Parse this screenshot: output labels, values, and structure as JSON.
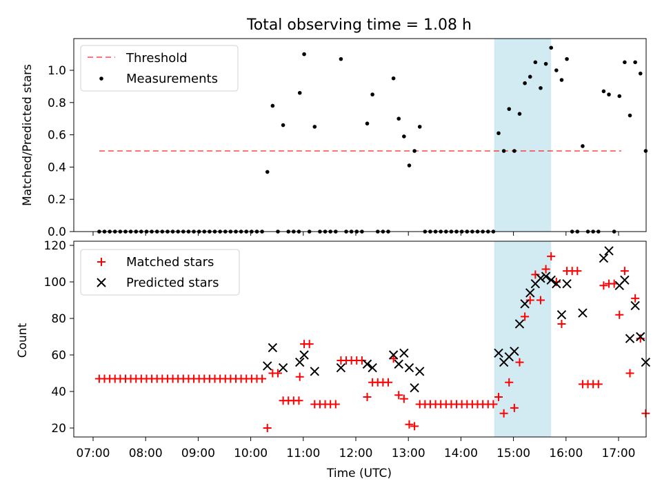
{
  "chart_data": [
    {
      "type": "scatter",
      "title": "Total observing time = 1.08 h",
      "ylabel": "Matched/Predicted stars",
      "xlabel": "",
      "ylim": [
        0,
        1.2
      ],
      "yticks": [
        "0.0",
        "0.2",
        "0.4",
        "0.6",
        "0.8",
        "1.0"
      ],
      "legend_position": "top-left",
      "highlight_span": {
        "x0": "14:38",
        "x1": "15:43",
        "color": "#add8e6"
      },
      "threshold": {
        "name": "Threshold",
        "value": 0.5,
        "x0": "07:07",
        "x1": "17:03",
        "color": "#ff0000"
      },
      "series": [
        {
          "name": "Measurements",
          "color": "#000000",
          "marker": "dot",
          "points": [
            [
              "07:07",
              0
            ],
            [
              "07:13",
              0
            ],
            [
              "07:19",
              0
            ],
            [
              "07:25",
              0
            ],
            [
              "07:31",
              0
            ],
            [
              "07:37",
              0
            ],
            [
              "07:43",
              0
            ],
            [
              "07:49",
              0
            ],
            [
              "07:55",
              0
            ],
            [
              "08:01",
              0
            ],
            [
              "08:07",
              0
            ],
            [
              "08:13",
              0
            ],
            [
              "08:19",
              0
            ],
            [
              "08:25",
              0
            ],
            [
              "08:31",
              0
            ],
            [
              "08:37",
              0
            ],
            [
              "08:43",
              0
            ],
            [
              "08:49",
              0
            ],
            [
              "08:55",
              0
            ],
            [
              "09:01",
              0
            ],
            [
              "09:07",
              0
            ],
            [
              "09:13",
              0
            ],
            [
              "09:19",
              0
            ],
            [
              "09:25",
              0
            ],
            [
              "09:31",
              0
            ],
            [
              "09:37",
              0
            ],
            [
              "09:43",
              0
            ],
            [
              "09:49",
              0
            ],
            [
              "09:55",
              0
            ],
            [
              "10:01",
              0
            ],
            [
              "10:07",
              0
            ],
            [
              "10:13",
              0
            ],
            [
              "10:19",
              0.37
            ],
            [
              "10:25",
              0.78
            ],
            [
              "10:31",
              0
            ],
            [
              "10:37",
              0.66
            ],
            [
              "10:43",
              0
            ],
            [
              "10:49",
              0
            ],
            [
              "10:55",
              0
            ],
            [
              "10:56",
              0.86
            ],
            [
              "11:01",
              1.1
            ],
            [
              "11:07",
              0
            ],
            [
              "11:13",
              0.65
            ],
            [
              "11:19",
              0
            ],
            [
              "11:25",
              0
            ],
            [
              "11:31",
              0
            ],
            [
              "11:37",
              0
            ],
            [
              "11:43",
              1.07
            ],
            [
              "11:49",
              0
            ],
            [
              "11:55",
              0
            ],
            [
              "12:01",
              0
            ],
            [
              "12:07",
              0
            ],
            [
              "12:13",
              0.67
            ],
            [
              "12:19",
              0.85
            ],
            [
              "12:25",
              0
            ],
            [
              "12:31",
              0
            ],
            [
              "12:37",
              0
            ],
            [
              "12:43",
              0.95
            ],
            [
              "12:49",
              0.7
            ],
            [
              "12:55",
              0.59
            ],
            [
              "13:01",
              0.41
            ],
            [
              "13:07",
              0.5
            ],
            [
              "13:13",
              0.65
            ],
            [
              "13:19",
              0
            ],
            [
              "13:25",
              0
            ],
            [
              "13:31",
              0
            ],
            [
              "13:37",
              0
            ],
            [
              "13:43",
              0
            ],
            [
              "13:49",
              0
            ],
            [
              "13:55",
              0
            ],
            [
              "14:01",
              0
            ],
            [
              "14:07",
              0
            ],
            [
              "14:13",
              0
            ],
            [
              "14:19",
              0
            ],
            [
              "14:25",
              0
            ],
            [
              "14:31",
              0
            ],
            [
              "14:37",
              0
            ],
            [
              "14:43",
              0.61
            ],
            [
              "14:49",
              0.5
            ],
            [
              "14:55",
              0.76
            ],
            [
              "15:01",
              0.5
            ],
            [
              "15:07",
              0.73
            ],
            [
              "15:13",
              0.92
            ],
            [
              "15:19",
              0.96
            ],
            [
              "15:25",
              1.05
            ],
            [
              "15:31",
              0.89
            ],
            [
              "15:37",
              1.04
            ],
            [
              "15:43",
              1.14
            ],
            [
              "15:49",
              1.0
            ],
            [
              "15:55",
              0.94
            ],
            [
              "16:01",
              1.07
            ],
            [
              "16:07",
              0
            ],
            [
              "16:13",
              0
            ],
            [
              "16:19",
              0.53
            ],
            [
              "16:25",
              0
            ],
            [
              "16:31",
              0
            ],
            [
              "16:37",
              0
            ],
            [
              "16:43",
              0.87
            ],
            [
              "16:49",
              0.85
            ],
            [
              "16:55",
              0
            ],
            [
              "17:01",
              0.84
            ],
            [
              "17:07",
              1.05
            ],
            [
              "17:13",
              0.72
            ],
            [
              "17:19",
              1.05
            ],
            [
              "17:25",
              0.98
            ],
            [
              "17:31",
              0.5
            ]
          ]
        }
      ]
    },
    {
      "type": "scatter",
      "title": "",
      "xlabel": "Time (UTC)",
      "ylabel": "Count",
      "ylim": [
        15,
        122
      ],
      "yticks": [
        "20",
        "40",
        "60",
        "80",
        "100",
        "120"
      ],
      "xticks": [
        "07:00",
        "08:00",
        "09:00",
        "10:00",
        "11:00",
        "12:00",
        "13:00",
        "14:00",
        "15:00",
        "16:00",
        "17:00"
      ],
      "legend_position": "top-left",
      "highlight_span": {
        "x0": "14:38",
        "x1": "15:43",
        "color": "#add8e6"
      },
      "series": [
        {
          "name": "Matched stars",
          "color": "#ff0000",
          "marker": "plus",
          "points": [
            [
              "07:07",
              47
            ],
            [
              "07:13",
              47
            ],
            [
              "07:19",
              47
            ],
            [
              "07:25",
              47
            ],
            [
              "07:31",
              47
            ],
            [
              "07:37",
              47
            ],
            [
              "07:43",
              47
            ],
            [
              "07:49",
              47
            ],
            [
              "07:55",
              47
            ],
            [
              "08:01",
              47
            ],
            [
              "08:07",
              47
            ],
            [
              "08:13",
              47
            ],
            [
              "08:19",
              47
            ],
            [
              "08:25",
              47
            ],
            [
              "08:31",
              47
            ],
            [
              "08:37",
              47
            ],
            [
              "08:43",
              47
            ],
            [
              "08:49",
              47
            ],
            [
              "08:55",
              47
            ],
            [
              "09:01",
              47
            ],
            [
              "09:07",
              47
            ],
            [
              "09:13",
              47
            ],
            [
              "09:19",
              47
            ],
            [
              "09:25",
              47
            ],
            [
              "09:31",
              47
            ],
            [
              "09:37",
              47
            ],
            [
              "09:43",
              47
            ],
            [
              "09:49",
              47
            ],
            [
              "09:55",
              47
            ],
            [
              "10:01",
              47
            ],
            [
              "10:07",
              47
            ],
            [
              "10:13",
              47
            ],
            [
              "10:19",
              20
            ],
            [
              "10:25",
              50
            ],
            [
              "10:31",
              50
            ],
            [
              "10:37",
              35
            ],
            [
              "10:43",
              35
            ],
            [
              "10:49",
              35
            ],
            [
              "10:55",
              35
            ],
            [
              "10:56",
              48
            ],
            [
              "11:01",
              66
            ],
            [
              "11:07",
              66
            ],
            [
              "11:13",
              33
            ],
            [
              "11:19",
              33
            ],
            [
              "11:25",
              33
            ],
            [
              "11:31",
              33
            ],
            [
              "11:37",
              33
            ],
            [
              "11:43",
              57
            ],
            [
              "11:49",
              57
            ],
            [
              "11:55",
              57
            ],
            [
              "12:01",
              57
            ],
            [
              "12:07",
              57
            ],
            [
              "12:13",
              37
            ],
            [
              "12:19",
              45
            ],
            [
              "12:25",
              45
            ],
            [
              "12:31",
              45
            ],
            [
              "12:37",
              45
            ],
            [
              "12:43",
              58
            ],
            [
              "12:49",
              38
            ],
            [
              "12:55",
              36
            ],
            [
              "13:01",
              22
            ],
            [
              "13:07",
              21
            ],
            [
              "13:13",
              33
            ],
            [
              "13:19",
              33
            ],
            [
              "13:25",
              33
            ],
            [
              "13:31",
              33
            ],
            [
              "13:37",
              33
            ],
            [
              "13:43",
              33
            ],
            [
              "13:49",
              33
            ],
            [
              "13:55",
              33
            ],
            [
              "14:01",
              33
            ],
            [
              "14:07",
              33
            ],
            [
              "14:13",
              33
            ],
            [
              "14:19",
              33
            ],
            [
              "14:25",
              33
            ],
            [
              "14:31",
              33
            ],
            [
              "14:37",
              33
            ],
            [
              "14:43",
              37
            ],
            [
              "14:49",
              28
            ],
            [
              "14:55",
              45
            ],
            [
              "15:01",
              31
            ],
            [
              "15:07",
              56
            ],
            [
              "15:13",
              81
            ],
            [
              "15:19",
              90
            ],
            [
              "15:25",
              104
            ],
            [
              "15:31",
              90
            ],
            [
              "15:37",
              107
            ],
            [
              "15:43",
              114
            ],
            [
              "15:49",
              100
            ],
            [
              "15:55",
              77
            ],
            [
              "16:01",
              106
            ],
            [
              "16:07",
              106
            ],
            [
              "16:13",
              106
            ],
            [
              "16:19",
              44
            ],
            [
              "16:25",
              44
            ],
            [
              "16:31",
              44
            ],
            [
              "16:37",
              44
            ],
            [
              "16:43",
              98
            ],
            [
              "16:49",
              99
            ],
            [
              "16:55",
              99
            ],
            [
              "17:01",
              82
            ],
            [
              "17:07",
              106
            ],
            [
              "17:13",
              50
            ],
            [
              "17:19",
              91
            ],
            [
              "17:25",
              69
            ],
            [
              "17:31",
              28
            ]
          ]
        },
        {
          "name": "Predicted stars",
          "color": "#000000",
          "marker": "x",
          "points": [
            [
              "10:19",
              54
            ],
            [
              "10:25",
              64
            ],
            [
              "10:37",
              53
            ],
            [
              "10:56",
              56
            ],
            [
              "11:01",
              60
            ],
            [
              "11:13",
              51
            ],
            [
              "11:43",
              53
            ],
            [
              "12:13",
              55
            ],
            [
              "12:19",
              53
            ],
            [
              "12:43",
              60
            ],
            [
              "12:49",
              55
            ],
            [
              "12:55",
              61
            ],
            [
              "13:01",
              53
            ],
            [
              "13:07",
              42
            ],
            [
              "13:13",
              51
            ],
            [
              "14:43",
              61
            ],
            [
              "14:49",
              56
            ],
            [
              "14:55",
              59
            ],
            [
              "15:01",
              62
            ],
            [
              "15:07",
              77
            ],
            [
              "15:13",
              88
            ],
            [
              "15:19",
              94
            ],
            [
              "15:25",
              99
            ],
            [
              "15:31",
              102
            ],
            [
              "15:37",
              103
            ],
            [
              "15:43",
              101
            ],
            [
              "15:49",
              99
            ],
            [
              "15:55",
              82
            ],
            [
              "16:01",
              99
            ],
            [
              "16:19",
              83
            ],
            [
              "16:43",
              113
            ],
            [
              "16:49",
              117
            ],
            [
              "17:01",
              98
            ],
            [
              "17:07",
              101
            ],
            [
              "17:13",
              69
            ],
            [
              "17:19",
              87
            ],
            [
              "17:25",
              70
            ],
            [
              "17:31",
              56
            ]
          ]
        }
      ]
    }
  ]
}
